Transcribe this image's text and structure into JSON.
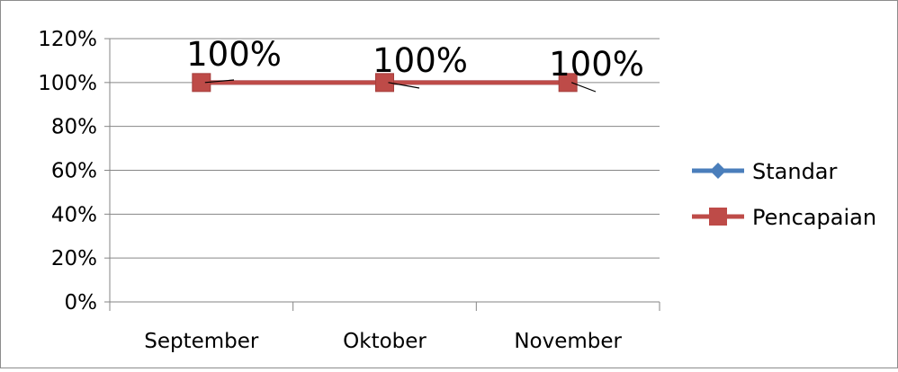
{
  "chart_data": {
    "type": "line",
    "title": "",
    "xlabel": "",
    "ylabel": "",
    "categories": [
      "September",
      "Oktober",
      "November"
    ],
    "ylim": [
      0,
      1.2
    ],
    "y_ticks": [
      "0%",
      "20%",
      "40%",
      "60%",
      "80%",
      "100%",
      "120%"
    ],
    "y_tick_values": [
      0,
      0.2,
      0.4,
      0.6,
      0.8,
      1.0,
      1.2
    ],
    "grid": true,
    "legend_position": "right",
    "series": [
      {
        "name": "Standar",
        "values": [
          1.0,
          1.0,
          1.0
        ],
        "color": "#4a7ebb",
        "marker": "diamond",
        "labels": [
          "",
          "",
          ""
        ]
      },
      {
        "name": "Pencapaian",
        "values": [
          1.0,
          1.0,
          1.0
        ],
        "color": "#be4b48",
        "marker": "square",
        "labels": [
          "100%",
          "100%",
          "100%"
        ]
      }
    ]
  }
}
